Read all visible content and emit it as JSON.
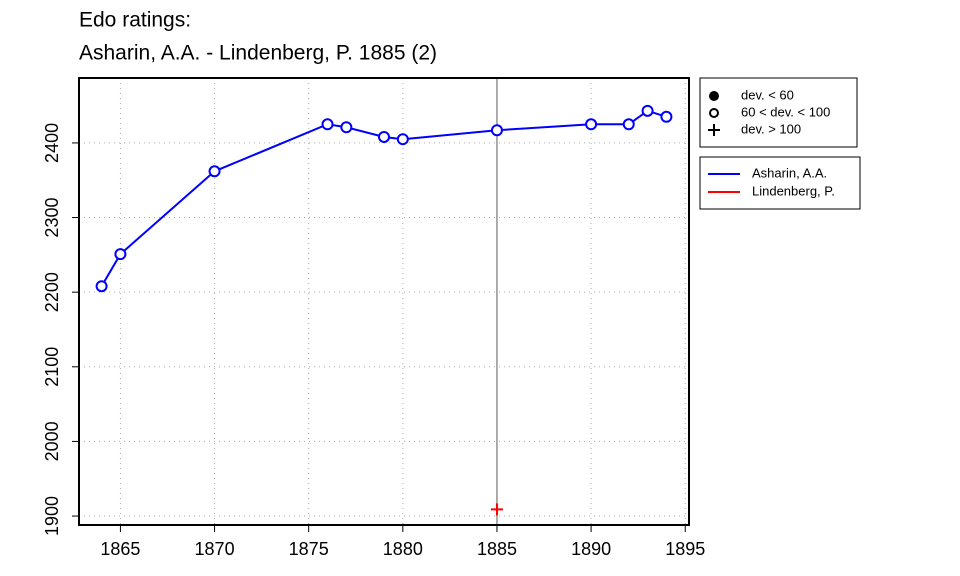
{
  "chart_data": {
    "type": "line",
    "title": "Edo ratings:",
    "subtitle": "Asharin, A.A. - Lindenberg, P. 1885 (2)",
    "series": [
      {
        "name": "Asharin, A.A.",
        "color": "#0000ff",
        "marker": "circle-open",
        "x": [
          1864,
          1865,
          1870,
          1876,
          1877,
          1879,
          1880,
          1885,
          1890,
          1892,
          1893,
          1894
        ],
        "values": [
          2208,
          2251,
          2362,
          2425,
          2421,
          2408,
          2405,
          2417,
          2425,
          2425,
          2443,
          2435
        ]
      },
      {
        "name": "Lindenberg, P.",
        "color": "#ff0000",
        "marker": "plus",
        "x": [
          1885
        ],
        "values": [
          1909
        ]
      }
    ],
    "legend_symbols": [
      {
        "label": "dev. < 60",
        "marker": "circle-filled"
      },
      {
        "label": "60 < dev. < 100",
        "marker": "circle-open"
      },
      {
        "label": "dev. > 100",
        "marker": "plus"
      }
    ],
    "vline": 1885,
    "xlim": [
      1862.8,
      1895.2
    ],
    "xticks": [
      1865,
      1870,
      1875,
      1880,
      1885,
      1890,
      1895
    ],
    "ylim": [
      1888,
      2487
    ],
    "yticks": [
      1900,
      2000,
      2100,
      2200,
      2300,
      2400
    ],
    "grid": true
  }
}
